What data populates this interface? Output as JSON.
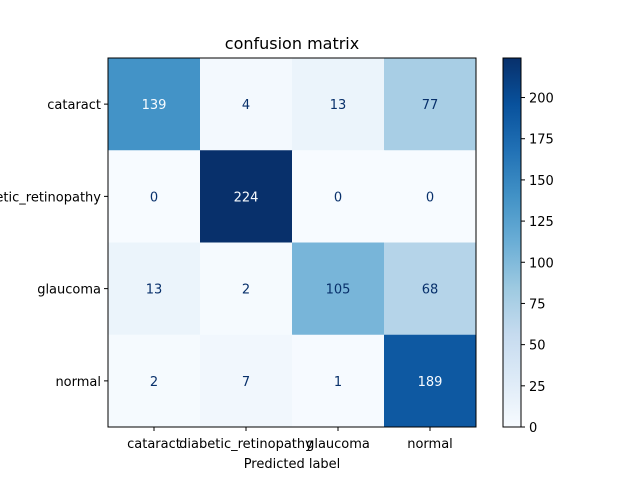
{
  "chart_data": {
    "type": "heatmap",
    "title": "confusion matrix",
    "xlabel": "Predicted label",
    "ylabel": "",
    "row_labels": [
      "cataract",
      "diabetic_retinopathy",
      "glaucoma",
      "normal"
    ],
    "col_labels": [
      "cataract",
      "diabetic_retinopathy",
      "glaucoma",
      "normal"
    ],
    "matrix": [
      [
        139,
        4,
        13,
        77
      ],
      [
        0,
        224,
        0,
        0
      ],
      [
        13,
        2,
        105,
        68
      ],
      [
        2,
        7,
        1,
        189
      ]
    ],
    "colormap": "Blues",
    "colorbar": {
      "range": [
        0,
        224
      ],
      "ticks": [
        0,
        25,
        50,
        75,
        100,
        125,
        150,
        175,
        200
      ]
    },
    "colors": {
      "low": "#f7fbff",
      "high": "#08306b",
      "text_dark": "#08306b",
      "text_light": "#f7fbff"
    }
  }
}
